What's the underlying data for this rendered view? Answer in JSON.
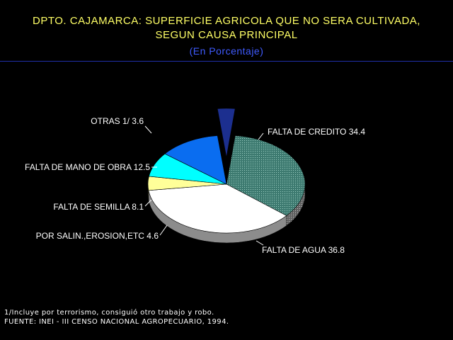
{
  "title": {
    "line1": "DPTO. CAJAMARCA: SUPERFICIE AGRICOLA QUE NO SERA CULTIVADA,",
    "line2": "SEGUN CAUSA PRINCIPAL",
    "line3": "(En Porcentaje)"
  },
  "footnotes": {
    "note": "1/Incluye por terrorismo, consiguió otro trabajo y robo.",
    "source": "FUENTE: INEI - III CENSO NACIONAL AGROPECUARIO, 1994."
  },
  "chart_data": {
    "type": "pie",
    "title": "DPTO. CAJAMARCA: SUPERFICIE AGRICOLA QUE NO SERA CULTIVADA, SEGUN CAUSA PRINCIPAL",
    "subtitle": "(En Porcentaje)",
    "slices": [
      {
        "label": "FALTA DE CREDITO",
        "value": 34.4,
        "color": "#3d7a70",
        "pattern": "dotted",
        "display": "FALTA DE CREDITO  34.4"
      },
      {
        "label": "FALTA DE AGUA",
        "value": 36.8,
        "color": "#ffffff",
        "pattern": "solid",
        "display": "FALTA DE AGUA  36.8"
      },
      {
        "label": "POR SALIN.,EROSION,ETC",
        "value": 4.6,
        "color": "#ffff99",
        "pattern": "solid",
        "display": "POR SALIN.,EROSION,ETC  4.6"
      },
      {
        "label": "FALTA DE SEMILLA",
        "value": 8.1,
        "color": "#00ffff",
        "pattern": "solid",
        "display": "FALTA DE SEMILLA  8.1"
      },
      {
        "label": "FALTA DE MANO DE OBRA",
        "value": 12.5,
        "color": "#0a6df0",
        "pattern": "solid",
        "display": "FALTA DE MANO DE OBRA  12.5"
      },
      {
        "label": "OTRAS 1/",
        "value": 3.6,
        "color": "#1c2f8f",
        "pattern": "solid",
        "exploded": true,
        "display": "OTRAS 1/  3.6"
      }
    ]
  }
}
